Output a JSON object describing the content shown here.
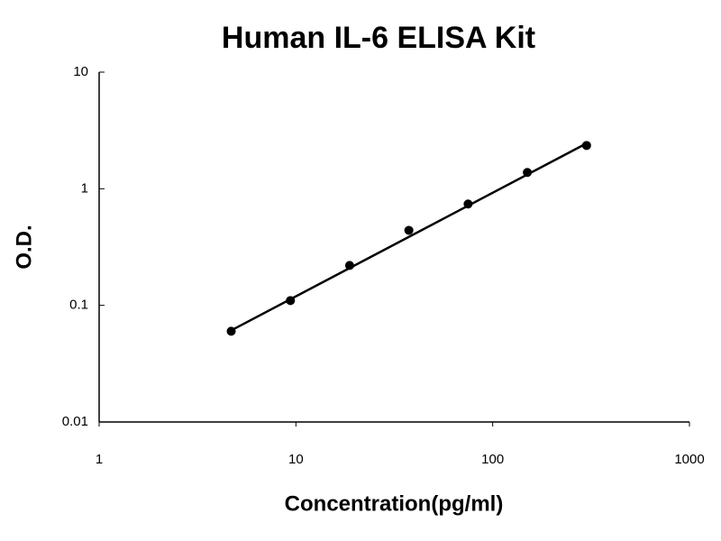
{
  "chart_data": {
    "type": "scatter",
    "title": "Human IL-6 ELISA Kit",
    "x_label": "Concentration(pg/ml)",
    "y_label": "O.D.",
    "x_scale": "log",
    "y_scale": "log",
    "xlim": [
      1,
      1000
    ],
    "ylim": [
      0.01,
      10
    ],
    "xticks": [
      1,
      10,
      100,
      1000
    ],
    "yticks": [
      0.01,
      0.1,
      1,
      10
    ],
    "color": "#000000",
    "x": [
      4.69,
      9.38,
      18.75,
      37.5,
      75,
      150,
      300
    ],
    "values": [
      0.06,
      0.11,
      0.22,
      0.44,
      0.74,
      1.38,
      2.35
    ],
    "trendline": {
      "x": [
        4.69,
        300
      ],
      "values": [
        0.061,
        2.45
      ]
    }
  }
}
